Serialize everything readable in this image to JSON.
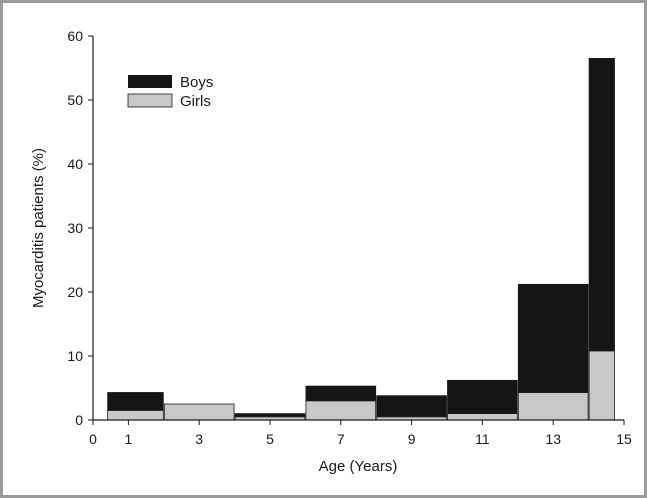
{
  "chart_data": {
    "type": "bar",
    "stacked": true,
    "title": "",
    "xlabel": "Age (Years)",
    "ylabel": "Myocarditis patients (%)",
    "xlim": [
      0,
      15
    ],
    "ylim": [
      0,
      60
    ],
    "x_ticks": [
      0,
      1,
      3,
      5,
      7,
      9,
      11,
      13,
      15
    ],
    "y_ticks": [
      0,
      10,
      20,
      30,
      40,
      50,
      60
    ],
    "bins": [
      [
        0.4,
        2
      ],
      [
        2,
        4
      ],
      [
        4,
        6
      ],
      [
        6,
        8
      ],
      [
        8,
        10
      ],
      [
        10,
        12
      ],
      [
        12,
        14
      ],
      [
        14,
        16
      ]
    ],
    "series": [
      {
        "name": "Girls",
        "color": "#c8c8c8",
        "values": [
          1.5,
          2.5,
          0.5,
          3.0,
          0.5,
          1.0,
          4.3,
          10.8
        ]
      },
      {
        "name": "Boys",
        "color": "#151515",
        "values": [
          2.8,
          0.0,
          0.5,
          2.3,
          3.3,
          5.2,
          16.9,
          45.7
        ]
      }
    ],
    "legend": {
      "position": "top-left",
      "entries": [
        "Boys",
        "Girls"
      ]
    },
    "grid": false
  }
}
